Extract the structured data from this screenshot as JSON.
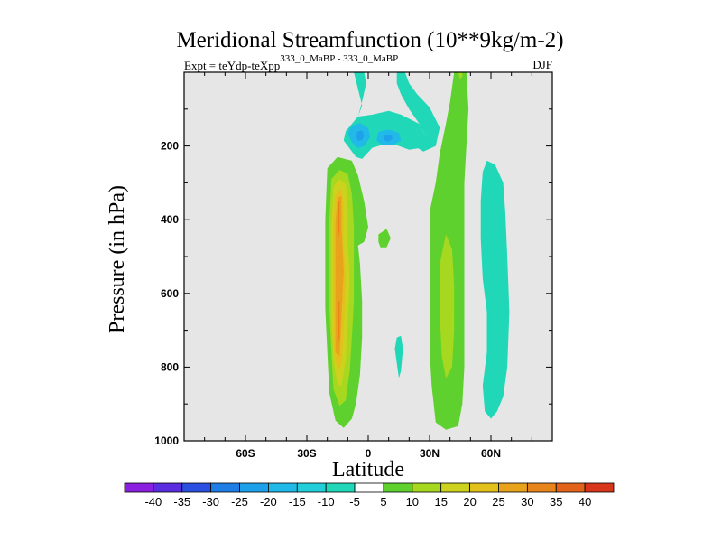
{
  "chart_data": {
    "type": "contour",
    "title": "Meridional Streamfunction (10**9kg/m-2)",
    "subtitle_prefix": "Expt = teYdp-teXpp",
    "subtitle_experiment": "333_0_MaBP - 333_0_MaBP",
    "season": "DJF",
    "xlabel": "Latitude",
    "ylabel": "Pressure (in hPa)",
    "xlim": [
      -90,
      90
    ],
    "ylim": [
      1000,
      0
    ],
    "xticks": [
      {
        "value": -60,
        "label": "60S"
      },
      {
        "value": -30,
        "label": "30S"
      },
      {
        "value": 0,
        "label": "0"
      },
      {
        "value": 30,
        "label": "30N"
      },
      {
        "value": 60,
        "label": "60N"
      }
    ],
    "yticks": [
      {
        "value": 200,
        "label": "200"
      },
      {
        "value": 400,
        "label": "400"
      },
      {
        "value": 600,
        "label": "600"
      },
      {
        "value": 800,
        "label": "800"
      },
      {
        "value": 1000,
        "label": "1000"
      }
    ],
    "background_color": "#e6e6e6",
    "colorbar": {
      "levels": [
        "-40",
        "-35",
        "-30",
        "-25",
        "-20",
        "-15",
        "-10",
        "-5",
        "5",
        "10",
        "15",
        "20",
        "25",
        "30",
        "35",
        "40"
      ],
      "colors": [
        "#8a1fe0",
        "#5a2ee0",
        "#2b4fe0",
        "#1f7de6",
        "#1ea0ea",
        "#21b9e8",
        "#22cfd8",
        "#20d8b8",
        "#ffffff",
        "#5fd12e",
        "#a6d81f",
        "#ccd21e",
        "#e2c11d",
        "#e8a21c",
        "#e8841c",
        "#e2641a",
        "#d8361a"
      ]
    },
    "regions": [
      {
        "name": "upper-tropical-negative",
        "value": -10,
        "color": "#20d8b8",
        "points": [
          [
            -7,
            0
          ],
          [
            -2,
            0
          ],
          [
            -1,
            30
          ],
          [
            -3,
            80
          ],
          [
            -5,
            120
          ],
          [
            2,
            115
          ],
          [
            10,
            105
          ],
          [
            16,
            115
          ],
          [
            25,
            140
          ],
          [
            28,
            175
          ],
          [
            26,
            205
          ],
          [
            20,
            210
          ],
          [
            14,
            198
          ],
          [
            8,
            195
          ],
          [
            2,
            205
          ],
          [
            -3,
            235
          ],
          [
            -6,
            230
          ],
          [
            -12,
            185
          ],
          [
            -11,
            160
          ],
          [
            -5,
            120
          ],
          [
            -3,
            90
          ]
        ]
      },
      {
        "name": "upper-tropical-negative-north",
        "value": -10,
        "color": "#20d8b8",
        "points": [
          [
            14,
            0
          ],
          [
            18,
            0
          ],
          [
            20,
            30
          ],
          [
            24,
            60
          ],
          [
            30,
            95
          ],
          [
            35,
            150
          ],
          [
            33,
            200
          ],
          [
            27,
            215
          ],
          [
            24,
            205
          ],
          [
            28,
            175
          ],
          [
            25,
            140
          ],
          [
            20,
            100
          ],
          [
            16,
            60
          ],
          [
            14,
            30
          ]
        ]
      },
      {
        "name": "upper-core-1",
        "value": -15,
        "color": "#21b9e8",
        "points": [
          [
            -8,
            145
          ],
          [
            -4,
            138
          ],
          [
            0,
            152
          ],
          [
            1,
            175
          ],
          [
            -2,
            200
          ],
          [
            -5,
            206
          ],
          [
            -8,
            190
          ],
          [
            -10,
            165
          ]
        ]
      },
      {
        "name": "upper-core-1b",
        "value": -20,
        "color": "#1ea0ea",
        "points": [
          [
            -5,
            160
          ],
          [
            -3,
            158
          ],
          [
            -2,
            172
          ],
          [
            -3,
            184
          ],
          [
            -5,
            186
          ],
          [
            -6,
            172
          ]
        ]
      },
      {
        "name": "upper-core-2",
        "value": -15,
        "color": "#21b9e8",
        "points": [
          [
            5,
            162
          ],
          [
            10,
            155
          ],
          [
            15,
            165
          ],
          [
            16,
            185
          ],
          [
            12,
            198
          ],
          [
            7,
            198
          ],
          [
            4,
            185
          ]
        ]
      },
      {
        "name": "upper-core-2b",
        "value": -20,
        "color": "#1ea0ea",
        "points": [
          [
            8,
            172
          ],
          [
            11,
            170
          ],
          [
            12,
            180
          ],
          [
            10,
            188
          ],
          [
            8,
            185
          ]
        ]
      },
      {
        "name": "nh-subtropical-negative",
        "value": -10,
        "color": "#20d8b8",
        "points": [
          [
            58,
            240
          ],
          [
            62,
            250
          ],
          [
            66,
            300
          ],
          [
            67,
            380
          ],
          [
            68,
            500
          ],
          [
            69,
            650
          ],
          [
            68,
            800
          ],
          [
            66,
            880
          ],
          [
            63,
            920
          ],
          [
            60,
            940
          ],
          [
            57,
            920
          ],
          [
            56,
            850
          ],
          [
            58,
            760
          ],
          [
            58,
            650
          ],
          [
            56,
            560
          ],
          [
            55,
            450
          ],
          [
            55,
            350
          ],
          [
            56,
            270
          ]
        ]
      },
      {
        "name": "sh-hadley-positive",
        "value": 10,
        "color": "#5fd12e",
        "points": [
          [
            -20,
            260
          ],
          [
            -15,
            230
          ],
          [
            -8,
            240
          ],
          [
            -5,
            280
          ],
          [
            -2,
            350
          ],
          [
            0,
            420
          ],
          [
            -2,
            460
          ],
          [
            -5,
            470
          ],
          [
            -4,
            520
          ],
          [
            -3,
            620
          ],
          [
            -3,
            720
          ],
          [
            -4,
            820
          ],
          [
            -6,
            900
          ],
          [
            -8,
            940
          ],
          [
            -12,
            965
          ],
          [
            -16,
            945
          ],
          [
            -19,
            870
          ],
          [
            -20,
            760
          ],
          [
            -21,
            640
          ],
          [
            -21,
            500
          ],
          [
            -21,
            400
          ]
        ]
      },
      {
        "name": "sh-hadley-15",
        "value": 15,
        "color": "#a6d81f",
        "points": [
          [
            -18,
            290
          ],
          [
            -14,
            265
          ],
          [
            -10,
            275
          ],
          [
            -8,
            330
          ],
          [
            -7,
            420
          ],
          [
            -7,
            520
          ],
          [
            -7,
            620
          ],
          [
            -8,
            720
          ],
          [
            -9,
            810
          ],
          [
            -11,
            890
          ],
          [
            -14,
            905
          ],
          [
            -17,
            860
          ],
          [
            -18,
            760
          ],
          [
            -19,
            640
          ],
          [
            -19,
            520
          ],
          [
            -19,
            400
          ]
        ]
      },
      {
        "name": "sh-hadley-20",
        "value": 20,
        "color": "#ccd21e",
        "points": [
          [
            -17,
            310
          ],
          [
            -14,
            290
          ],
          [
            -11,
            305
          ],
          [
            -10,
            370
          ],
          [
            -10,
            460
          ],
          [
            -9,
            560
          ],
          [
            -10,
            680
          ],
          [
            -11,
            780
          ],
          [
            -13,
            850
          ],
          [
            -15,
            850
          ],
          [
            -17,
            780
          ],
          [
            -18,
            660
          ],
          [
            -18,
            540
          ],
          [
            -18,
            420
          ]
        ]
      },
      {
        "name": "sh-hadley-25",
        "value": 25,
        "color": "#e2c11d",
        "points": [
          [
            -16,
            330
          ],
          [
            -13,
            315
          ],
          [
            -12,
            360
          ],
          [
            -12,
            460
          ],
          [
            -11,
            560
          ],
          [
            -12,
            690
          ],
          [
            -13,
            790
          ],
          [
            -15,
            810
          ],
          [
            -17,
            750
          ],
          [
            -17,
            640
          ],
          [
            -17,
            520
          ],
          [
            -17,
            400
          ]
        ]
      },
      {
        "name": "sh-hadley-30",
        "value": 30,
        "color": "#e8a21c",
        "points": [
          [
            -15,
            340
          ],
          [
            -13,
            335
          ],
          [
            -13,
            420
          ],
          [
            -12,
            540
          ],
          [
            -13,
            660
          ],
          [
            -14,
            770
          ],
          [
            -16,
            760
          ],
          [
            -16,
            650
          ],
          [
            -16,
            520
          ],
          [
            -16,
            410
          ]
        ]
      },
      {
        "name": "sh-hadley-35",
        "value": 35,
        "color": "#e8841c",
        "points": [
          [
            -15,
            350
          ],
          [
            -14,
            350
          ],
          [
            -14,
            430
          ],
          [
            -15,
            460
          ],
          [
            -15,
            420
          ]
        ]
      },
      {
        "name": "sh-hadley-35b",
        "value": 35,
        "color": "#e8841c",
        "points": [
          [
            -15,
            620
          ],
          [
            -14,
            620
          ],
          [
            -14,
            720
          ],
          [
            -15,
            740
          ],
          [
            -15,
            690
          ]
        ]
      },
      {
        "name": "equatorial-positive-patch",
        "value": 10,
        "color": "#5fd12e",
        "points": [
          [
            5,
            440
          ],
          [
            9,
            425
          ],
          [
            11,
            450
          ],
          [
            9,
            475
          ],
          [
            6,
            475
          ],
          [
            5,
            460
          ]
        ]
      },
      {
        "name": "equatorial-negative-sliver",
        "value": -10,
        "color": "#20d8b8",
        "points": [
          [
            14,
            720
          ],
          [
            16,
            715
          ],
          [
            17,
            750
          ],
          [
            16,
            810
          ],
          [
            15,
            830
          ],
          [
            14,
            790
          ],
          [
            13,
            750
          ]
        ]
      },
      {
        "name": "nh-ferrel-positive",
        "value": 10,
        "color": "#5fd12e",
        "points": [
          [
            30,
            380
          ],
          [
            33,
            300
          ],
          [
            35,
            220
          ],
          [
            38,
            140
          ],
          [
            40,
            80
          ],
          [
            42,
            0
          ],
          [
            48,
            0
          ],
          [
            49,
            100
          ],
          [
            48,
            200
          ],
          [
            47,
            300
          ],
          [
            47,
            400
          ],
          [
            47,
            500
          ],
          [
            47,
            650
          ],
          [
            47,
            800
          ],
          [
            46,
            900
          ],
          [
            44,
            960
          ],
          [
            38,
            970
          ],
          [
            33,
            950
          ],
          [
            31,
            850
          ],
          [
            30,
            750
          ],
          [
            30,
            600
          ],
          [
            30,
            480
          ]
        ]
      },
      {
        "name": "nh-ferrel-15",
        "value": 15,
        "color": "#a6d81f",
        "points": [
          [
            35,
            520
          ],
          [
            38,
            440
          ],
          [
            41,
            480
          ],
          [
            42,
            580
          ],
          [
            42,
            700
          ],
          [
            41,
            800
          ],
          [
            38,
            830
          ],
          [
            36,
            770
          ],
          [
            35,
            660
          ]
        ]
      },
      {
        "name": "nh-ferrel-15-top",
        "value": 15,
        "color": "#a6d81f",
        "points": [
          [
            44,
            0
          ],
          [
            46,
            0
          ],
          [
            46,
            10
          ],
          [
            45,
            20
          ]
        ]
      }
    ]
  }
}
